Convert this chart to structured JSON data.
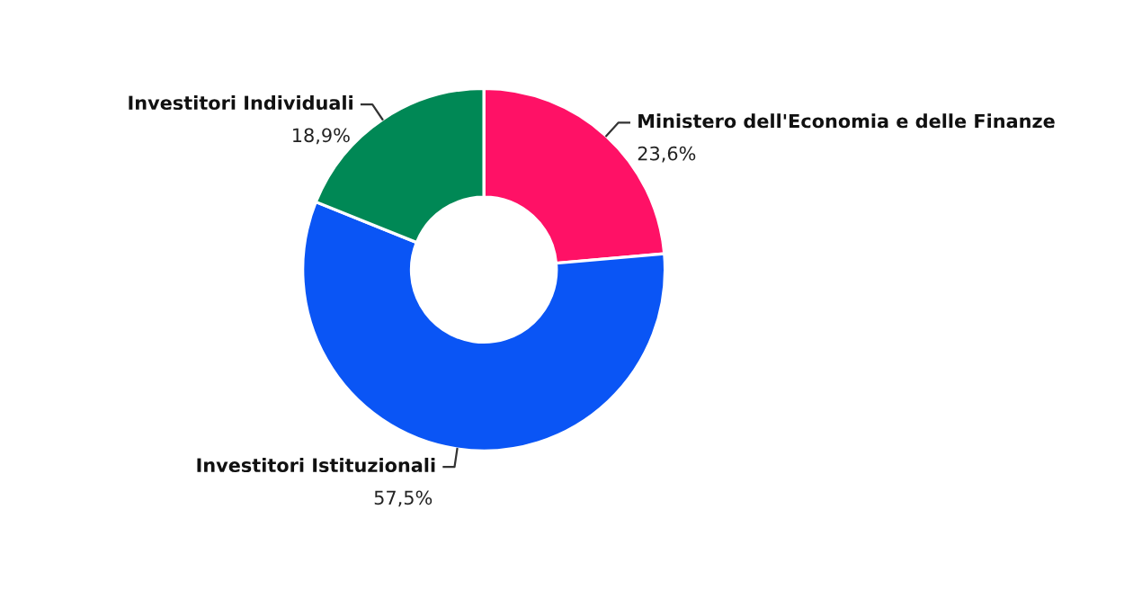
{
  "chart_data": {
    "type": "donut",
    "categories": [
      "Ministero dell'Economia e delle Finanze",
      "Investitori Istituzionali",
      "Investitori Individuali"
    ],
    "values": [
      23.6,
      57.5,
      18.9
    ],
    "colors": [
      "#ff1166",
      "#0a55f5",
      "#008855"
    ],
    "value_labels": [
      "23,6%",
      "57,5%",
      "18,9%"
    ],
    "legend": false
  }
}
